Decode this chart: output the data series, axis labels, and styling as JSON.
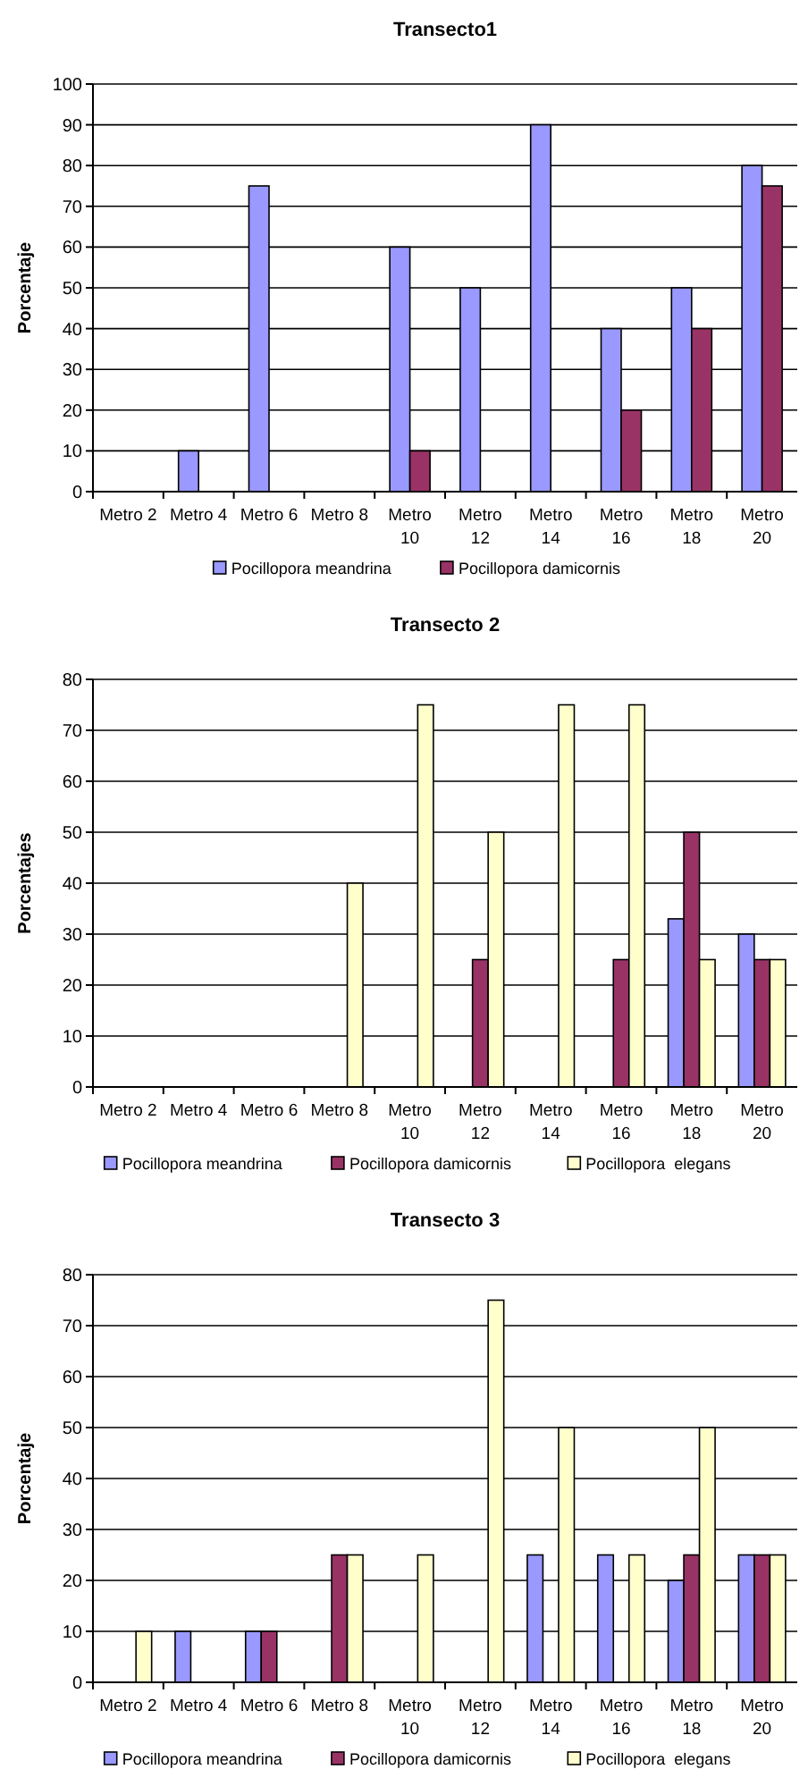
{
  "chart_data": [
    {
      "type": "bar",
      "title": "Transecto1",
      "ylabel": "Porcentaje",
      "categories": [
        "Metro 2",
        "Metro 4",
        "Metro 6",
        "Metro 8",
        "Metro 10",
        "Metro 12",
        "Metro 14",
        "Metro 16",
        "Metro 18",
        "Metro 20"
      ],
      "series": [
        {
          "name": "Pocillopora meandrina",
          "color": "#9999ff",
          "values": [
            null,
            10,
            75,
            null,
            60,
            50,
            90,
            40,
            50,
            80
          ]
        },
        {
          "name": "Pocillopora damicornis",
          "color": "#993366",
          "values": [
            null,
            null,
            null,
            null,
            10,
            null,
            null,
            20,
            40,
            75
          ]
        }
      ],
      "ylim": [
        0,
        100
      ],
      "yticks": [
        0,
        10,
        20,
        30,
        40,
        50,
        60,
        70,
        80,
        90,
        100
      ],
      "grid": "y",
      "legend": "bottom"
    },
    {
      "type": "bar",
      "title": "Transecto 2",
      "ylabel": "Porcentajes",
      "categories": [
        "Metro 2",
        "Metro 4",
        "Metro 6",
        "Metro 8",
        "Metro 10",
        "Metro 12",
        "Metro 14",
        "Metro 16",
        "Metro 18",
        "Metro 20"
      ],
      "series": [
        {
          "name": "Pocillopora meandrina",
          "color": "#9999ff",
          "values": [
            null,
            null,
            null,
            null,
            null,
            null,
            null,
            null,
            33,
            30
          ]
        },
        {
          "name": "Pocillopora damicornis",
          "color": "#993366",
          "values": [
            null,
            null,
            null,
            null,
            null,
            25,
            null,
            25,
            50,
            25
          ]
        },
        {
          "name": "Pocillopora  elegans",
          "color": "#ffffcc",
          "values": [
            null,
            null,
            null,
            40,
            75,
            50,
            75,
            75,
            25,
            25
          ]
        }
      ],
      "ylim": [
        0,
        80
      ],
      "yticks": [
        0,
        10,
        20,
        30,
        40,
        50,
        60,
        70,
        80
      ],
      "grid": "y",
      "legend": "bottom"
    },
    {
      "type": "bar",
      "title": "Transecto 3",
      "ylabel": "Porcentaje",
      "categories": [
        "Metro 2",
        "Metro 4",
        "Metro 6",
        "Metro 8",
        "Metro 10",
        "Metro 12",
        "Metro 14",
        "Metro 16",
        "Metro 18",
        "Metro 20"
      ],
      "series": [
        {
          "name": "Pocillopora meandrina",
          "color": "#9999ff",
          "values": [
            null,
            10,
            10,
            null,
            null,
            null,
            25,
            25,
            20,
            25
          ]
        },
        {
          "name": "Pocillopora damicornis",
          "color": "#993366",
          "values": [
            null,
            null,
            10,
            25,
            null,
            null,
            null,
            null,
            25,
            25
          ]
        },
        {
          "name": "Pocillopora  elegans",
          "color": "#ffffcc",
          "values": [
            10,
            null,
            null,
            25,
            25,
            75,
            50,
            25,
            50,
            25
          ]
        }
      ],
      "ylim": [
        0,
        80
      ],
      "yticks": [
        0,
        10,
        20,
        30,
        40,
        50,
        60,
        70,
        80
      ],
      "grid": "y",
      "legend": "bottom"
    }
  ]
}
